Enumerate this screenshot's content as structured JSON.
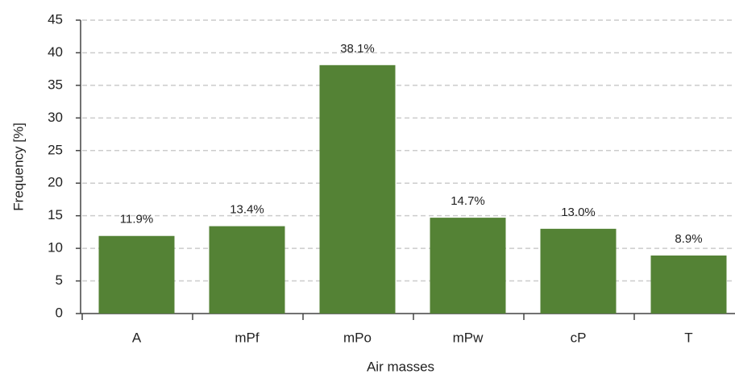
{
  "chart_data": {
    "type": "bar",
    "x_label": "Air masses",
    "y_label": "Frequency [%]",
    "categories": [
      "A",
      "mPf",
      "mPo",
      "mPw",
      "cP",
      "T"
    ],
    "values": [
      11.9,
      13.4,
      38.1,
      14.7,
      13.0,
      8.9
    ],
    "value_labels": [
      "11.9%",
      "13.4%",
      "38.1%",
      "14.7%",
      "13.0%",
      "8.9%"
    ],
    "color": "#548235",
    "ylim": [
      0,
      45
    ],
    "yticks": [
      0,
      5,
      10,
      15,
      20,
      25,
      30,
      35,
      40,
      45
    ],
    "grid": true
  }
}
